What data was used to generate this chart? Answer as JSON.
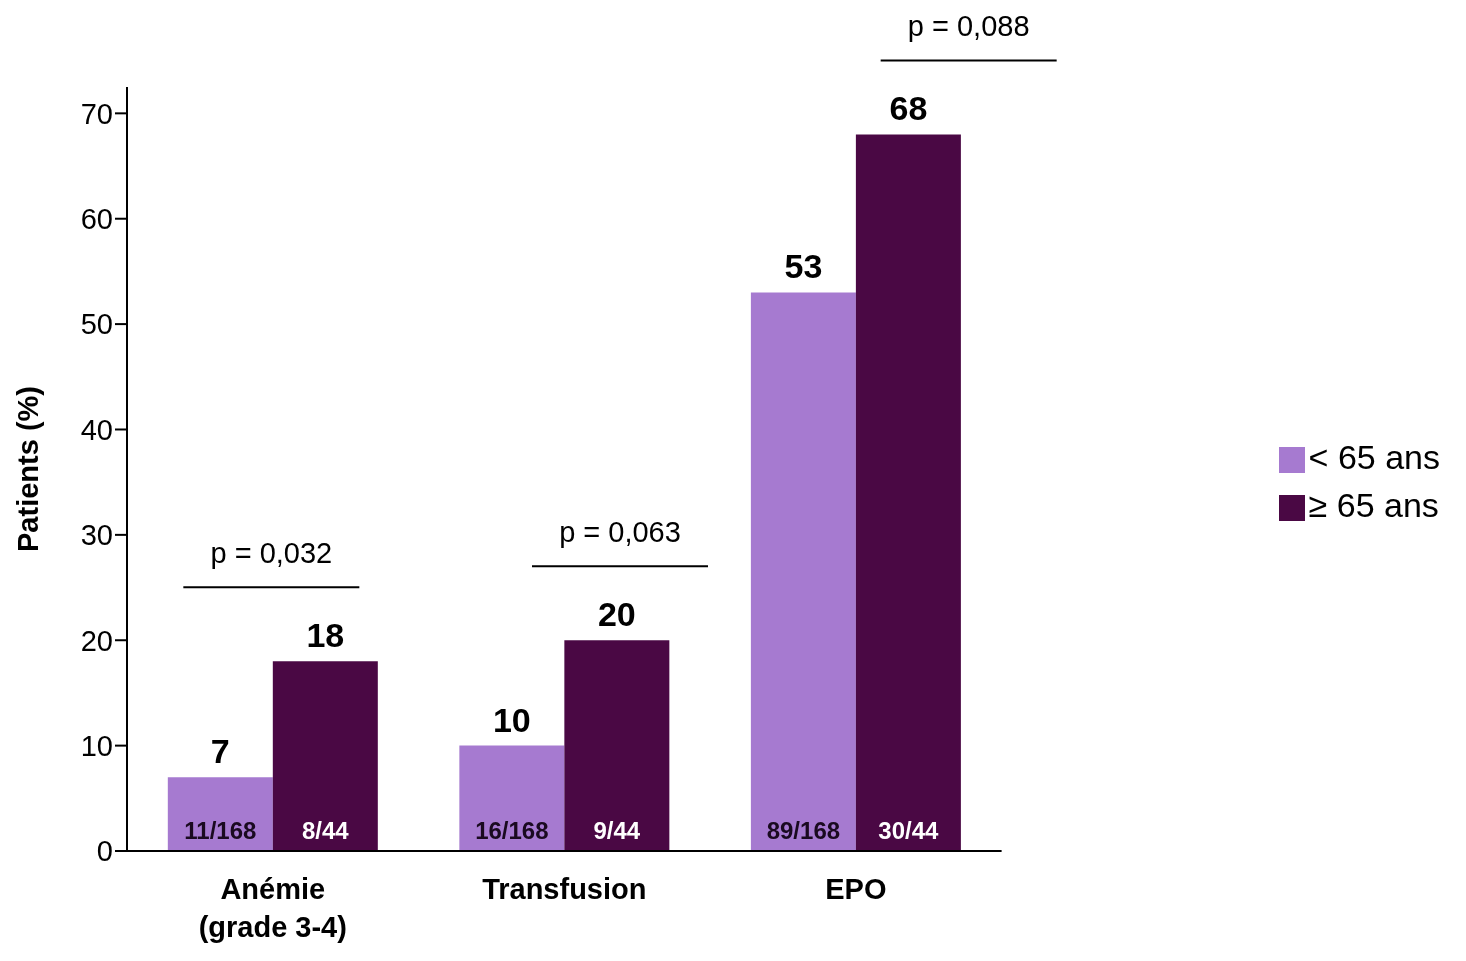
{
  "chart_data": {
    "type": "bar",
    "ylabel": "Patients (%)",
    "categories": [
      "Anémie\n(grade 3-4)",
      "Transfusion",
      "EPO"
    ],
    "series": [
      {
        "name": "< 65 ans",
        "color": "#a67ad0",
        "values": [
          7,
          10,
          53
        ],
        "value_labels": [
          "11/168",
          "16/168",
          "89/168"
        ]
      },
      {
        "name": "≥ 65 ans",
        "color": "#4a0844",
        "values": [
          18,
          20,
          68
        ],
        "value_labels": [
          "8/44",
          "9/44",
          "30/44"
        ]
      }
    ],
    "ylim": [
      0,
      72.5
    ],
    "yticks": [
      0,
      10,
      20,
      30,
      40,
      50,
      60,
      70
    ],
    "legend": "right",
    "grid": false,
    "annotations": [
      "p = 0,032",
      "p = 0,063",
      "p = 0,088",
      {
        "text": "7",
        "x": "Anémie\n(grade 3-4)",
        "y": 7
      },
      {
        "text": "18",
        "x": "Anémie\n(grade 3-4)",
        "y": 18
      },
      {
        "text": "10",
        "x": "Transfusion",
        "y": 10
      },
      {
        "text": "20",
        "x": "Transfusion",
        "y": 20
      },
      {
        "text": "53",
        "x": "EPO",
        "y": 53
      },
      {
        "text": "68",
        "x": "EPO",
        "y": 68
      }
    ]
  }
}
